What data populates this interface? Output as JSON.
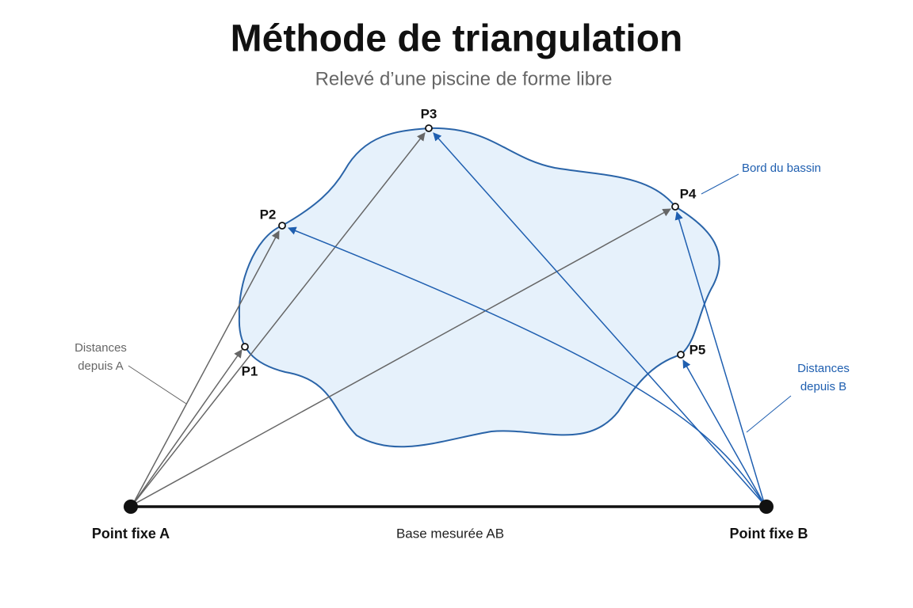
{
  "header": {
    "title": "Méthode de triangulation",
    "subtitle": "Relevé d’une piscine de forme libre"
  },
  "points": [
    {
      "label": "P1"
    },
    {
      "label": "P2"
    },
    {
      "label": "P3"
    },
    {
      "label": "P4"
    },
    {
      "label": "P5"
    }
  ],
  "annotations": {
    "pool_edge": "Bord du bassin",
    "distances_a": [
      "Distances",
      "depuis A"
    ],
    "distances_b": [
      "Distances",
      "depuis B"
    ]
  },
  "base": {
    "point_a": "Point fixe A",
    "point_b": "Point fixe B",
    "label": "Base mesurée AB"
  }
}
